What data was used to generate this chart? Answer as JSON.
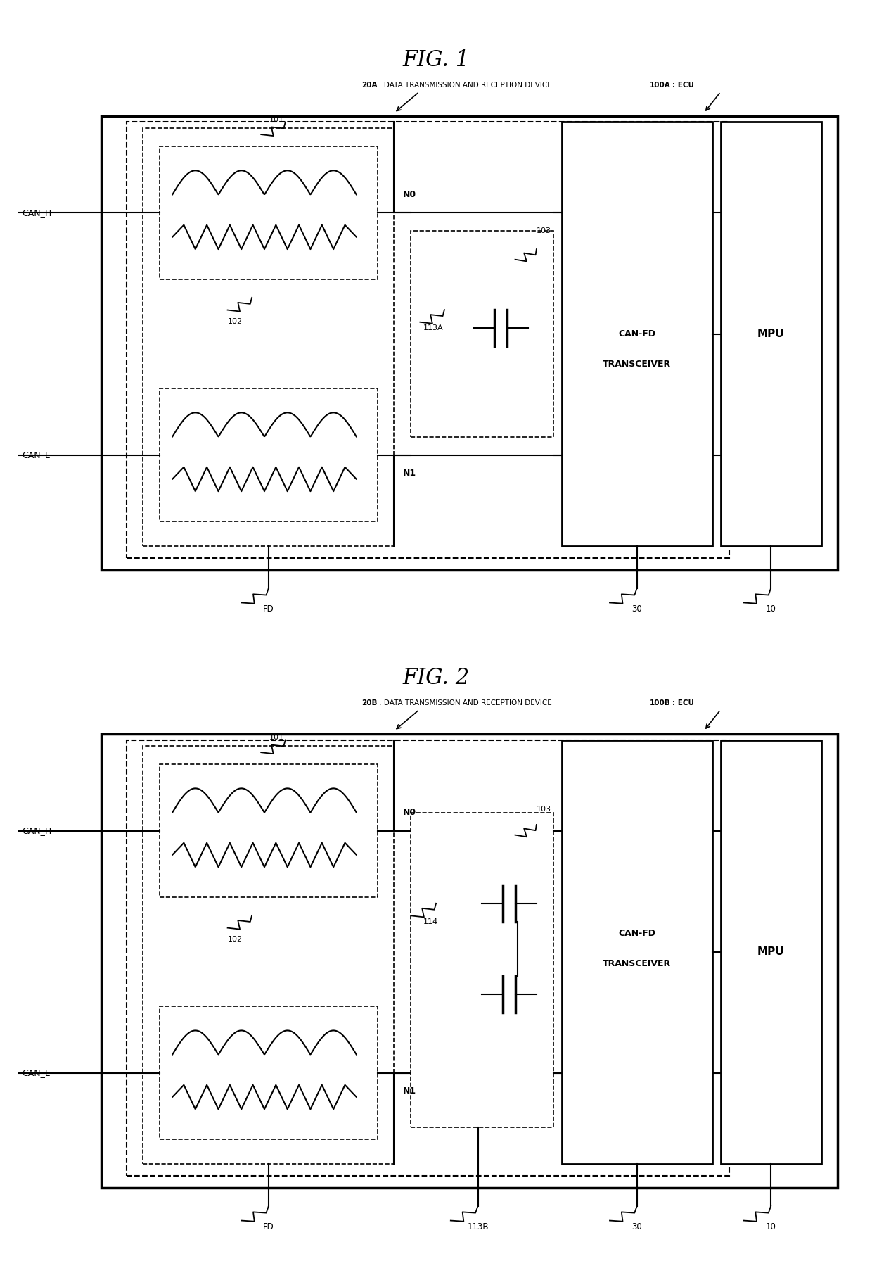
{
  "fig1_title": "FIG. 1",
  "fig2_title": "FIG. 2",
  "fig1_label_20A": "20A",
  "fig1_label_20A_desc": ": DATA TRANSMISSION AND RECEPTION DEVICE",
  "fig1_label_100A": "100A",
  "fig1_label_100A_desc": ": ECU",
  "fig2_label_20B": "20B",
  "fig2_label_20B_desc": ": DATA TRANSMISSION AND RECEPTION DEVICE",
  "fig2_label_100B": "100B",
  "fig2_label_100B_desc": ": ECU",
  "label_can_h": "CAN_H",
  "label_can_l": "CAN_L",
  "label_n0": "N0",
  "label_n1": "N1",
  "label_101": "101",
  "label_102": "102",
  "label_103": "103",
  "label_113A": "113A",
  "label_114": "114",
  "label_113B": "113B",
  "label_fd": "FD",
  "label_30": "30",
  "label_10": "10",
  "label_can_fd_line1": "CAN-FD",
  "label_can_fd_line2": "TRANSCEIVER",
  "label_mpu": "MPU",
  "bg_color": "#ffffff",
  "line_color": "#000000"
}
